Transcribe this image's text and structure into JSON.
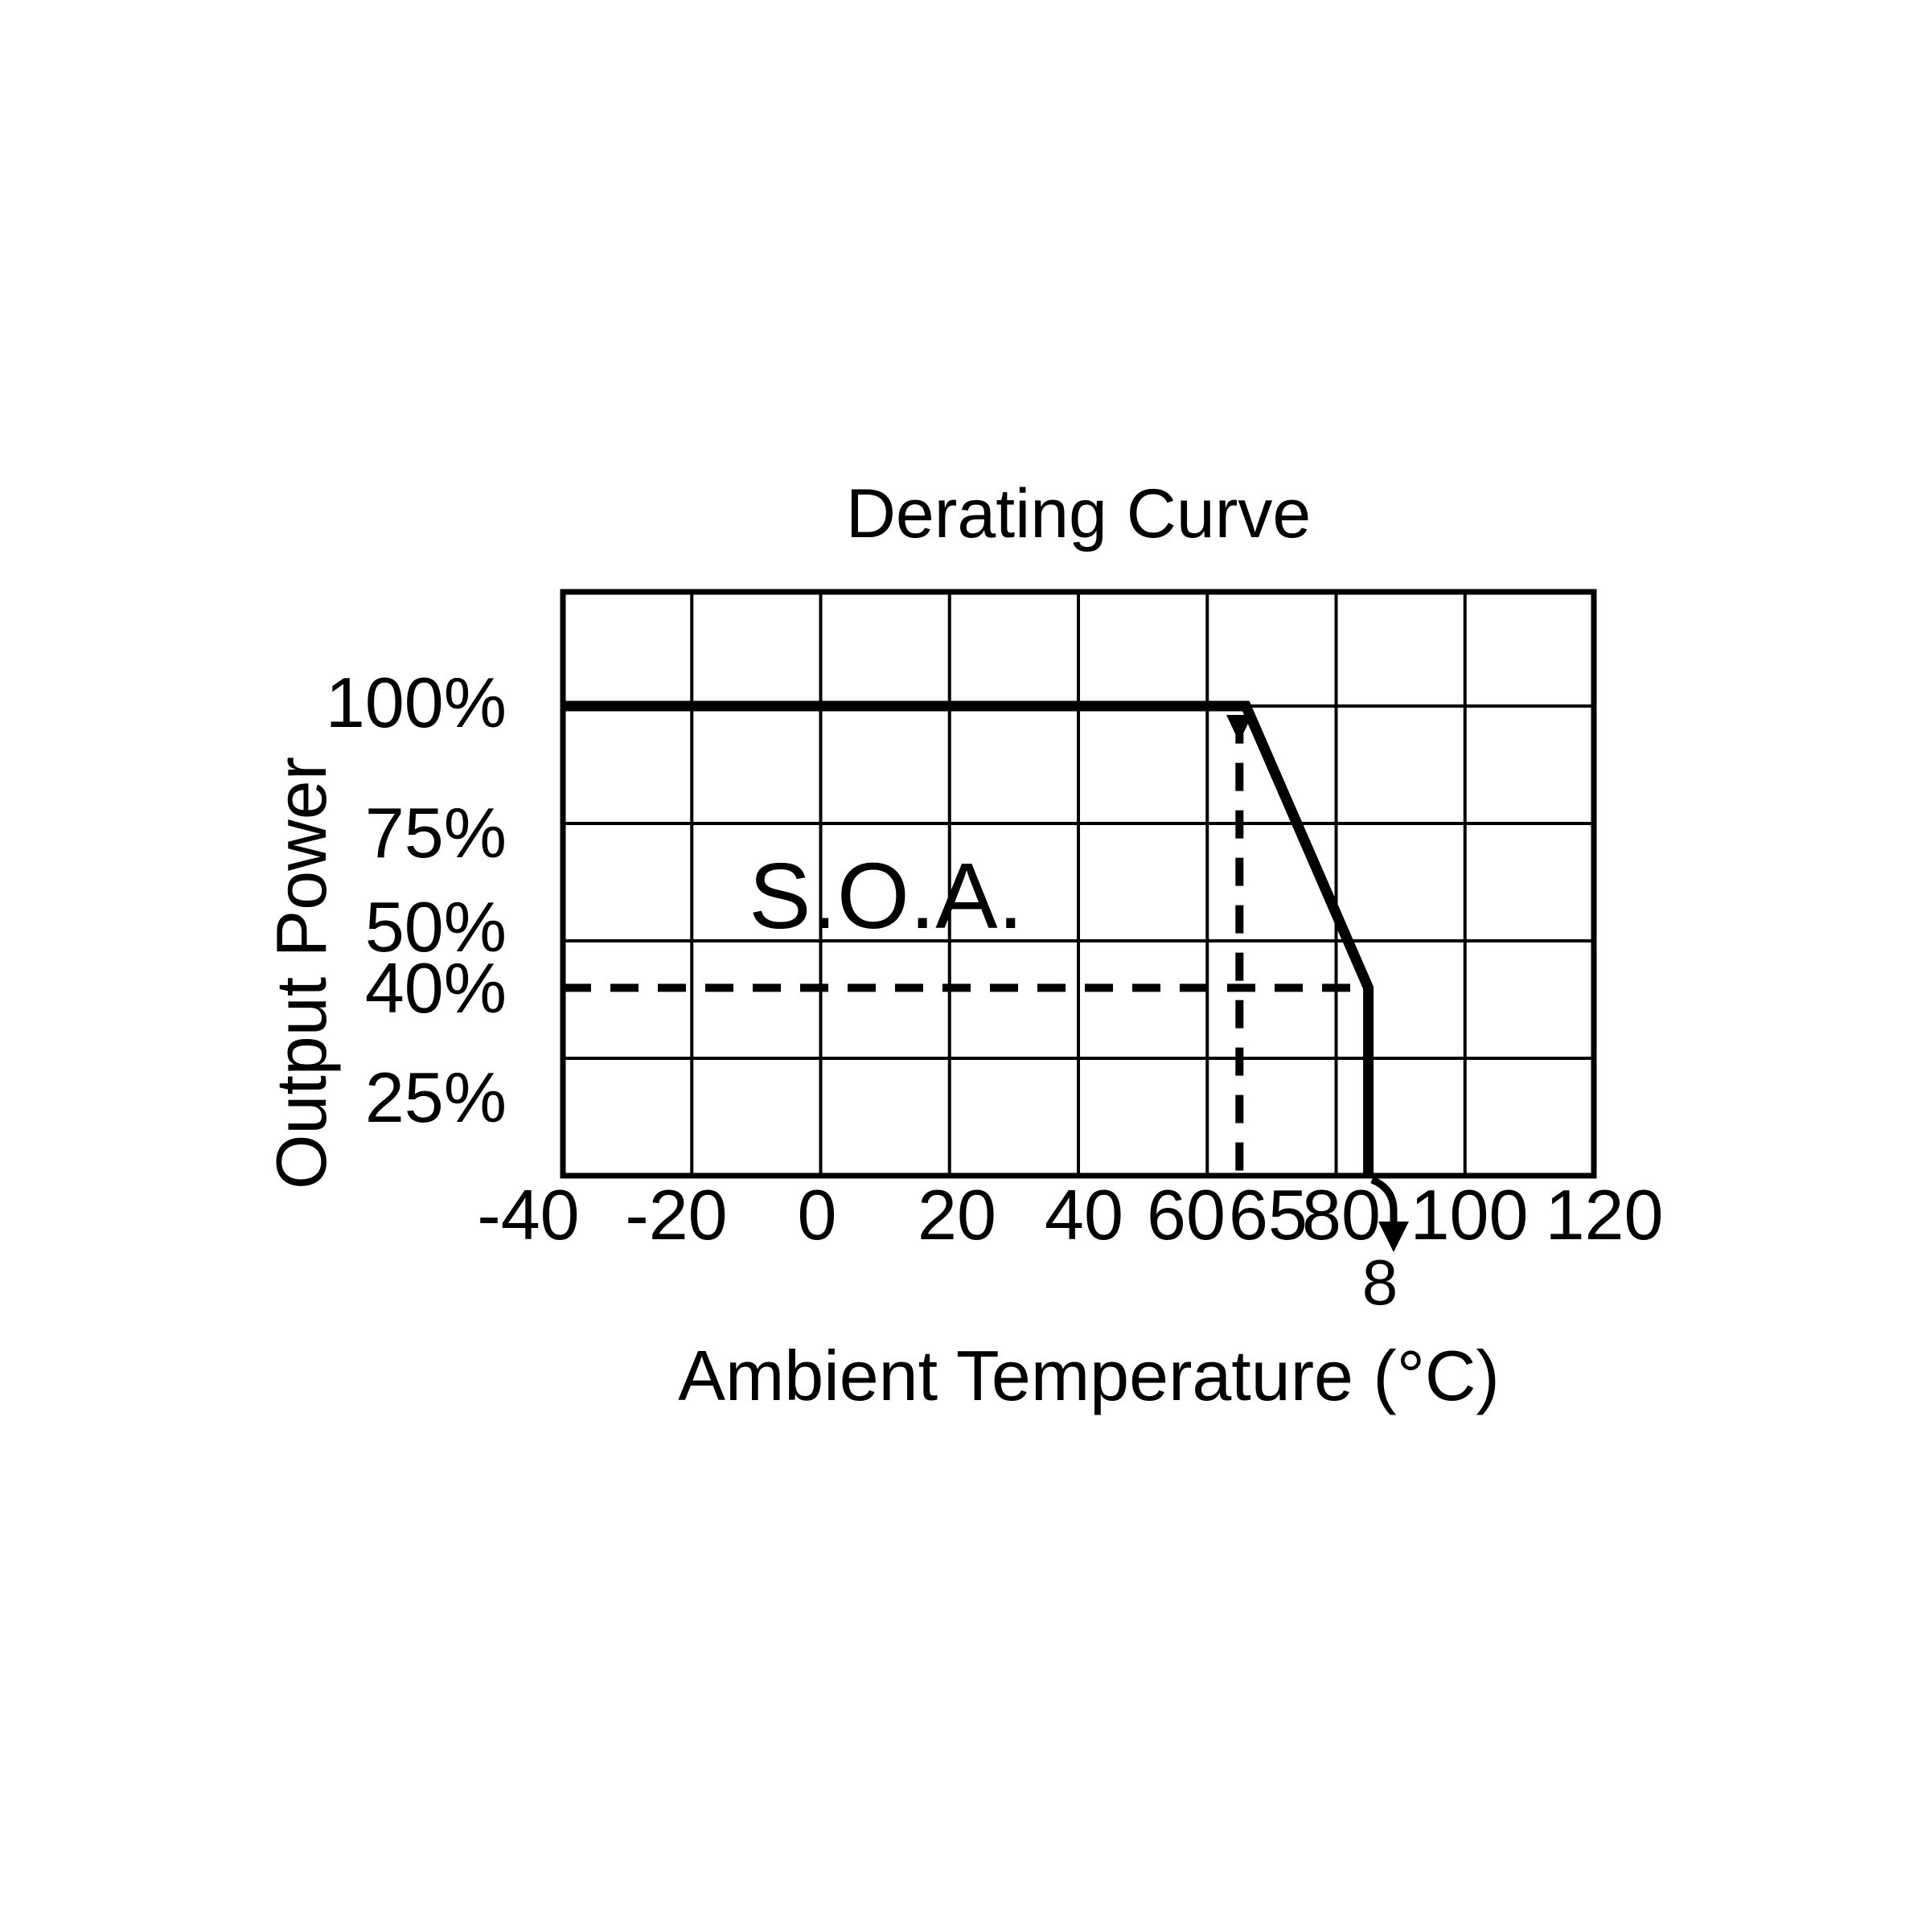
{
  "title": "Derating Curve",
  "annotation_soa": "S.O.A.",
  "x_axis": {
    "title": "Ambient Temperature (°C)",
    "ticks": [
      "-40",
      "-20",
      "0",
      "20",
      "40",
      "60",
      "65",
      "80",
      "100",
      "120"
    ],
    "overflow_label": "8"
  },
  "y_axis": {
    "title": "Output Power",
    "ticks": [
      "100%",
      "75%",
      "50%",
      "40%",
      "25%"
    ]
  },
  "colors": {
    "foreground": "#000000",
    "background": "#ffffff"
  },
  "chart_data": {
    "type": "line",
    "title": "Derating Curve",
    "xlabel": "Ambient Temperature (°C)",
    "ylabel": "Output Power",
    "xlim": [
      -40,
      120
    ],
    "ylim": [
      0,
      125
    ],
    "x_tick_values": [
      -40,
      -20,
      0,
      20,
      40,
      60,
      65,
      80,
      100,
      120
    ],
    "y_tick_values_pct": [
      100,
      75,
      50,
      40,
      25
    ],
    "grid": true,
    "grid_x": [
      -20,
      0,
      20,
      40,
      60,
      80,
      100
    ],
    "grid_y": [
      25,
      50,
      75,
      100
    ],
    "series": [
      {
        "name": "derating-curve",
        "style": "solid",
        "points": [
          [
            -40,
            100
          ],
          [
            66,
            100
          ],
          [
            85,
            40
          ],
          [
            85,
            0
          ]
        ]
      },
      {
        "name": "soa-limit-40pct",
        "style": "dashed",
        "points": [
          [
            -40,
            40
          ],
          [
            85,
            40
          ]
        ]
      },
      {
        "name": "soa-limit-65c",
        "style": "dashed",
        "points": [
          [
            65,
            98
          ],
          [
            65,
            0
          ]
        ]
      }
    ],
    "annotations": [
      {
        "text": "S.O.A.",
        "x": 10,
        "y": 58
      },
      {
        "text": "8",
        "position": "below x-axis at 85°C, pointed to by a hooked down-arrow"
      }
    ],
    "legend": "none"
  }
}
